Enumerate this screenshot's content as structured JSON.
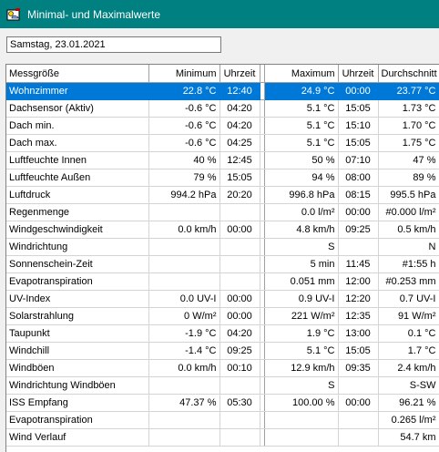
{
  "window": {
    "title": "Minimal- und Maximalwerte",
    "icon": "weather-app-icon"
  },
  "date_field": {
    "value": "Samstag, 23.01.2021"
  },
  "columns": {
    "name": "Messgröße",
    "min": "Minimum",
    "min_time": "Uhrzeit",
    "max": "Maximum",
    "max_time": "Uhrzeit",
    "avg": "Durchschnitt"
  },
  "selected_row": 0,
  "colors": {
    "titlebar": "#008080",
    "selection": "#0078d7"
  },
  "rows": [
    {
      "name": "Wohnzimmer",
      "min": "22.8 °C",
      "min_time": "12:40",
      "max": "24.9 °C",
      "max_time": "00:00",
      "avg": "23.77 °C"
    },
    {
      "name": "Dachsensor (Aktiv)",
      "min": "-0.6 °C",
      "min_time": "04:20",
      "max": "5.1 °C",
      "max_time": "15:05",
      "avg": "1.73 °C"
    },
    {
      "name": "Dach min.",
      "min": "-0.6 °C",
      "min_time": "04:20",
      "max": "5.1 °C",
      "max_time": "15:10",
      "avg": "1.70 °C"
    },
    {
      "name": "Dach max.",
      "min": "-0.6 °C",
      "min_time": "04:25",
      "max": "5.1 °C",
      "max_time": "15:05",
      "avg": "1.75 °C"
    },
    {
      "name": "Luftfeuchte Innen",
      "min": "40 %",
      "min_time": "12:45",
      "max": "50 %",
      "max_time": "07:10",
      "avg": "47 %"
    },
    {
      "name": "Luftfeuchte Außen",
      "min": "79 %",
      "min_time": "15:05",
      "max": "94 %",
      "max_time": "08:00",
      "avg": "89 %"
    },
    {
      "name": "Luftdruck",
      "min": "994.2 hPa",
      "min_time": "20:20",
      "max": "996.8 hPa",
      "max_time": "08:15",
      "avg": "995.5 hPa"
    },
    {
      "name": "Regenmenge",
      "min": "",
      "min_time": "",
      "max": "0.0 l/m²",
      "max_time": "00:00",
      "avg": "#0.000 l/m²"
    },
    {
      "name": "Windgeschwindigkeit",
      "min": "0.0 km/h",
      "min_time": "00:00",
      "max": "4.8 km/h",
      "max_time": "09:25",
      "avg": "0.5 km/h"
    },
    {
      "name": "Windrichtung",
      "min": "",
      "min_time": "",
      "max": "S",
      "max_time": "",
      "avg": "N"
    },
    {
      "name": "Sonnenschein-Zeit",
      "min": "",
      "min_time": "",
      "max": "5 min",
      "max_time": "11:45",
      "avg": "#1:55 h"
    },
    {
      "name": "Evapotranspiration",
      "min": "",
      "min_time": "",
      "max": "0.051 mm",
      "max_time": "12:00",
      "avg": "#0.253 mm"
    },
    {
      "name": "UV-Index",
      "min": "0.0 UV-I",
      "min_time": "00:00",
      "max": "0.9 UV-I",
      "max_time": "12:20",
      "avg": "0.7 UV-I"
    },
    {
      "name": "Solarstrahlung",
      "min": "0 W/m²",
      "min_time": "00:00",
      "max": "221 W/m²",
      "max_time": "12:35",
      "avg": "91 W/m²"
    },
    {
      "name": "Taupunkt",
      "min": "-1.9 °C",
      "min_time": "04:20",
      "max": "1.9 °C",
      "max_time": "13:00",
      "avg": "0.1 °C"
    },
    {
      "name": "Windchill",
      "min": "-1.4 °C",
      "min_time": "09:25",
      "max": "5.1 °C",
      "max_time": "15:05",
      "avg": "1.7 °C"
    },
    {
      "name": "Windböen",
      "min": "0.0 km/h",
      "min_time": "00:10",
      "max": "12.9 km/h",
      "max_time": "09:35",
      "avg": "2.4 km/h"
    },
    {
      "name": "Windrichtung Windböen",
      "min": "",
      "min_time": "",
      "max": "S",
      "max_time": "",
      "avg": "S-SW"
    },
    {
      "name": "ISS Empfang",
      "min": "47.37 %",
      "min_time": "05:30",
      "max": "100.00 %",
      "max_time": "00:00",
      "avg": "96.21 %"
    },
    {
      "name": "Evapotranspiration",
      "min": "",
      "min_time": "",
      "max": "",
      "max_time": "",
      "avg": "0.265 l/m²"
    },
    {
      "name": "Wind Verlauf",
      "min": "",
      "min_time": "",
      "max": "",
      "max_time": "",
      "avg": "54.7 km"
    }
  ]
}
